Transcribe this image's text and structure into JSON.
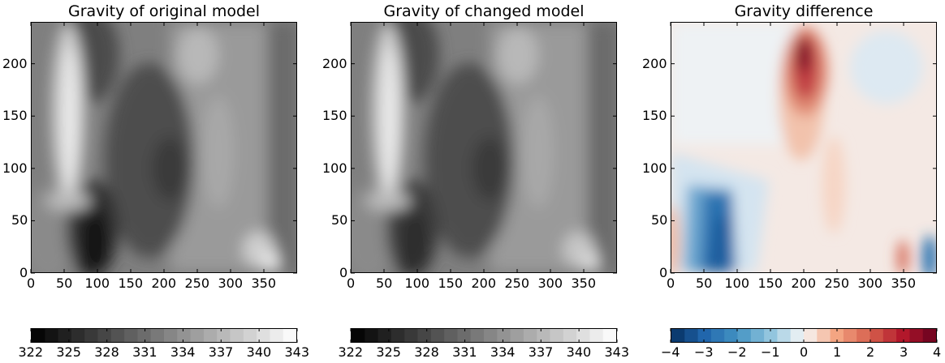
{
  "chart_data": [
    {
      "type": "heatmap",
      "title": "Gravity of original model",
      "colormap": "gray",
      "xlim": [
        0,
        400
      ],
      "ylim": [
        0,
        240
      ],
      "xticks": [
        "0",
        "50",
        "100",
        "150",
        "200",
        "250",
        "300",
        "350"
      ],
      "yticks": [
        "0",
        "50",
        "100",
        "150",
        "200"
      ],
      "colorbar": {
        "range": [
          322,
          343
        ],
        "ticks": [
          "322",
          "325",
          "328",
          "331",
          "334",
          "337",
          "340",
          "343"
        ]
      },
      "features": [
        {
          "x": 90,
          "y": 30,
          "value": 322
        },
        {
          "x": 40,
          "y": 190,
          "value": 341
        },
        {
          "x": 175,
          "y": 110,
          "value": 327
        },
        {
          "x": 250,
          "y": 200,
          "value": 338
        },
        {
          "x": 350,
          "y": 20,
          "value": 340
        }
      ]
    },
    {
      "type": "heatmap",
      "title": "Gravity of changed model",
      "colormap": "gray",
      "xlim": [
        0,
        400
      ],
      "ylim": [
        0,
        240
      ],
      "xticks": [
        "0",
        "50",
        "100",
        "150",
        "200",
        "250",
        "300",
        "350"
      ],
      "yticks": [
        "0",
        "50",
        "100",
        "150",
        "200"
      ],
      "colorbar": {
        "range": [
          322,
          343
        ],
        "ticks": [
          "322",
          "325",
          "328",
          "331",
          "334",
          "337",
          "340",
          "343"
        ]
      },
      "features": [
        {
          "x": 90,
          "y": 30,
          "value": 326
        },
        {
          "x": 40,
          "y": 190,
          "value": 341
        },
        {
          "x": 175,
          "y": 110,
          "value": 327
        },
        {
          "x": 250,
          "y": 200,
          "value": 338
        },
        {
          "x": 350,
          "y": 20,
          "value": 339
        }
      ]
    },
    {
      "type": "heatmap",
      "title": "Gravity difference",
      "colormap": "RdBu_r",
      "xlim": [
        0,
        400
      ],
      "ylim": [
        0,
        240
      ],
      "xticks": [
        "0",
        "50",
        "100",
        "150",
        "200",
        "250",
        "300",
        "350"
      ],
      "yticks": [
        "0",
        "50",
        "100",
        "150",
        "200"
      ],
      "colorbar": {
        "range": [
          -4,
          4
        ],
        "ticks": [
          "−4",
          "−3",
          "−2",
          "−1",
          "0",
          "1",
          "2",
          "3",
          "4"
        ]
      },
      "features": [
        {
          "x": 200,
          "y": 215,
          "value": 4
        },
        {
          "x": 75,
          "y": 40,
          "value": -4
        },
        {
          "x": 385,
          "y": 15,
          "value": -3
        },
        {
          "x": 350,
          "y": 20,
          "value": 2
        }
      ]
    }
  ]
}
